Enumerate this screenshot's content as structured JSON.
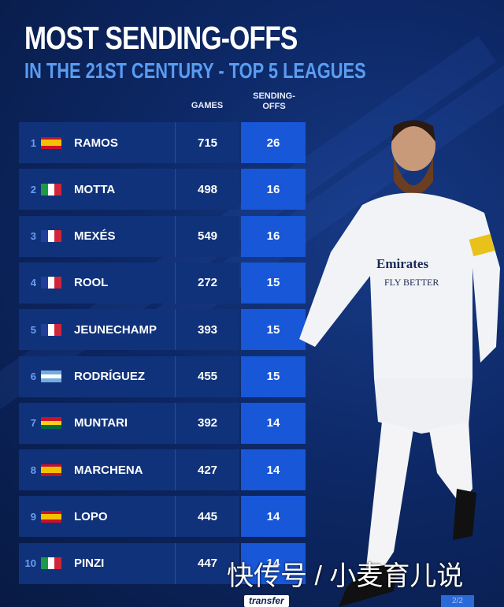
{
  "title": "MOST SENDING-OFFS",
  "subtitle": "IN THE 21ST CENTURY - TOP 5 LEAGUES",
  "chart_data": {
    "type": "table",
    "columns": [
      "GAMES",
      "SENDING-OFFS"
    ],
    "rows": [
      {
        "rank": "1",
        "flag": "spain",
        "name": "RAMOS",
        "games": "715",
        "sending_offs": "26"
      },
      {
        "rank": "2",
        "flag": "italy",
        "name": "MOTTA",
        "games": "498",
        "sending_offs": "16"
      },
      {
        "rank": "3",
        "flag": "france",
        "name": "MEXÉS",
        "games": "549",
        "sending_offs": "16"
      },
      {
        "rank": "4",
        "flag": "france",
        "name": "ROOL",
        "games": "272",
        "sending_offs": "15"
      },
      {
        "rank": "5",
        "flag": "france",
        "name": "JEUNECHAMP",
        "games": "393",
        "sending_offs": "15"
      },
      {
        "rank": "6",
        "flag": "argentina",
        "name": "RODRÍGUEZ",
        "games": "455",
        "sending_offs": "15"
      },
      {
        "rank": "7",
        "flag": "ghana",
        "name": "MUNTARI",
        "games": "392",
        "sending_offs": "14"
      },
      {
        "rank": "8",
        "flag": "spain",
        "name": "MARCHENA",
        "games": "427",
        "sending_offs": "14"
      },
      {
        "rank": "9",
        "flag": "spain",
        "name": "LOPO",
        "games": "445",
        "sending_offs": "14"
      },
      {
        "rank": "10",
        "flag": "italy",
        "name": "PINZI",
        "games": "447",
        "sending_offs": "14"
      }
    ]
  },
  "shirt_text": [
    "Emirates",
    "FLY BETTER"
  ],
  "watermark": "快传号 / 小麦育儿说",
  "logo": "transfer",
  "page_indicator": "2/2",
  "colors": {
    "background": "#0b2150",
    "row": "#10327a",
    "highlight": "#1757d8",
    "subtitle": "#5a9cf0"
  }
}
